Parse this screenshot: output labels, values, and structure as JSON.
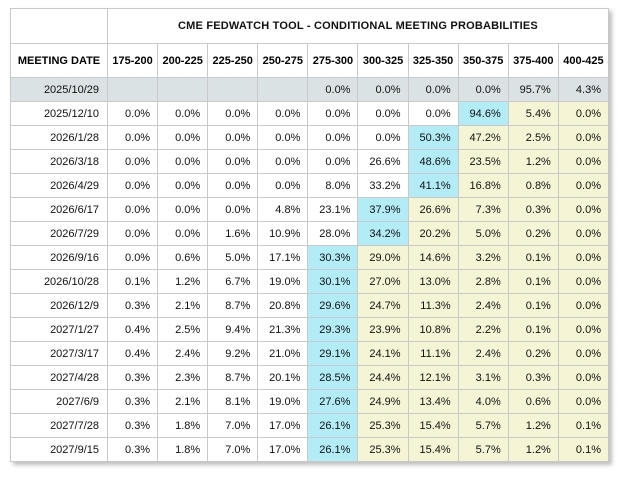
{
  "table": {
    "title": "CME FEDWATCH TOOL - CONDITIONAL MEETING PROBABILITIES",
    "date_header": "MEETING DATE",
    "rate_headers": [
      "175-200",
      "200-225",
      "225-250",
      "250-275",
      "275-300",
      "300-325",
      "325-350",
      "350-375",
      "375-400",
      "400-425"
    ],
    "rows": [
      {
        "date": "2025/10/29",
        "selected": true,
        "max_col": null,
        "values": [
          "",
          "",
          "",
          "",
          "0.0%",
          "0.0%",
          "0.0%",
          "0.0%",
          "95.7%",
          "4.3%"
        ]
      },
      {
        "date": "2025/12/10",
        "selected": false,
        "max_col": 7,
        "values": [
          "0.0%",
          "0.0%",
          "0.0%",
          "0.0%",
          "0.0%",
          "0.0%",
          "0.0%",
          "94.6%",
          "5.4%",
          "0.0%"
        ]
      },
      {
        "date": "2026/1/28",
        "selected": false,
        "max_col": 6,
        "values": [
          "0.0%",
          "0.0%",
          "0.0%",
          "0.0%",
          "0.0%",
          "0.0%",
          "50.3%",
          "47.2%",
          "2.5%",
          "0.0%"
        ]
      },
      {
        "date": "2026/3/18",
        "selected": false,
        "max_col": 6,
        "values": [
          "0.0%",
          "0.0%",
          "0.0%",
          "0.0%",
          "0.0%",
          "26.6%",
          "48.6%",
          "23.5%",
          "1.2%",
          "0.0%"
        ]
      },
      {
        "date": "2026/4/29",
        "selected": false,
        "max_col": 6,
        "values": [
          "0.0%",
          "0.0%",
          "0.0%",
          "0.0%",
          "8.0%",
          "33.2%",
          "41.1%",
          "16.8%",
          "0.8%",
          "0.0%"
        ]
      },
      {
        "date": "2026/6/17",
        "selected": false,
        "max_col": 5,
        "values": [
          "0.0%",
          "0.0%",
          "0.0%",
          "4.8%",
          "23.1%",
          "37.9%",
          "26.6%",
          "7.3%",
          "0.3%",
          "0.0%"
        ]
      },
      {
        "date": "2026/7/29",
        "selected": false,
        "max_col": 5,
        "values": [
          "0.0%",
          "0.0%",
          "1.6%",
          "10.9%",
          "28.0%",
          "34.2%",
          "20.2%",
          "5.0%",
          "0.2%",
          "0.0%"
        ]
      },
      {
        "date": "2026/9/16",
        "selected": false,
        "max_col": 4,
        "values": [
          "0.0%",
          "0.6%",
          "5.0%",
          "17.1%",
          "30.3%",
          "29.0%",
          "14.6%",
          "3.2%",
          "0.1%",
          "0.0%"
        ]
      },
      {
        "date": "2026/10/28",
        "selected": false,
        "max_col": 4,
        "values": [
          "0.1%",
          "1.2%",
          "6.7%",
          "19.0%",
          "30.1%",
          "27.0%",
          "13.0%",
          "2.8%",
          "0.1%",
          "0.0%"
        ]
      },
      {
        "date": "2026/12/9",
        "selected": false,
        "max_col": 4,
        "values": [
          "0.3%",
          "2.1%",
          "8.7%",
          "20.8%",
          "29.6%",
          "24.7%",
          "11.3%",
          "2.4%",
          "0.1%",
          "0.0%"
        ]
      },
      {
        "date": "2027/1/27",
        "selected": false,
        "max_col": 4,
        "values": [
          "0.4%",
          "2.5%",
          "9.4%",
          "21.3%",
          "29.3%",
          "23.9%",
          "10.8%",
          "2.2%",
          "0.1%",
          "0.0%"
        ]
      },
      {
        "date": "2027/3/17",
        "selected": false,
        "max_col": 4,
        "values": [
          "0.4%",
          "2.4%",
          "9.2%",
          "21.0%",
          "29.1%",
          "24.1%",
          "11.1%",
          "2.4%",
          "0.2%",
          "0.0%"
        ]
      },
      {
        "date": "2027/4/28",
        "selected": false,
        "max_col": 4,
        "values": [
          "0.3%",
          "2.3%",
          "8.7%",
          "20.1%",
          "28.5%",
          "24.4%",
          "12.1%",
          "3.1%",
          "0.3%",
          "0.0%"
        ]
      },
      {
        "date": "2027/6/9",
        "selected": false,
        "max_col": 4,
        "values": [
          "0.3%",
          "2.1%",
          "8.1%",
          "19.0%",
          "27.6%",
          "24.9%",
          "13.4%",
          "4.0%",
          "0.6%",
          "0.0%"
        ]
      },
      {
        "date": "2027/7/28",
        "selected": false,
        "max_col": 4,
        "values": [
          "0.3%",
          "1.8%",
          "7.0%",
          "17.0%",
          "26.1%",
          "25.3%",
          "15.4%",
          "5.7%",
          "1.2%",
          "0.1%"
        ]
      },
      {
        "date": "2027/9/15",
        "selected": false,
        "max_col": 4,
        "values": [
          "0.3%",
          "1.8%",
          "7.0%",
          "17.0%",
          "26.1%",
          "25.3%",
          "15.4%",
          "5.7%",
          "1.2%",
          "0.1%"
        ]
      }
    ]
  },
  "colors": {
    "highlight_blue": "#b2ecf6",
    "highlight_yellow": "#f5f5d6",
    "selected_row_bg": "#dbe2e3",
    "border": "#c9c9c9",
    "table_bg": "#ffffff",
    "text": "#111111"
  }
}
